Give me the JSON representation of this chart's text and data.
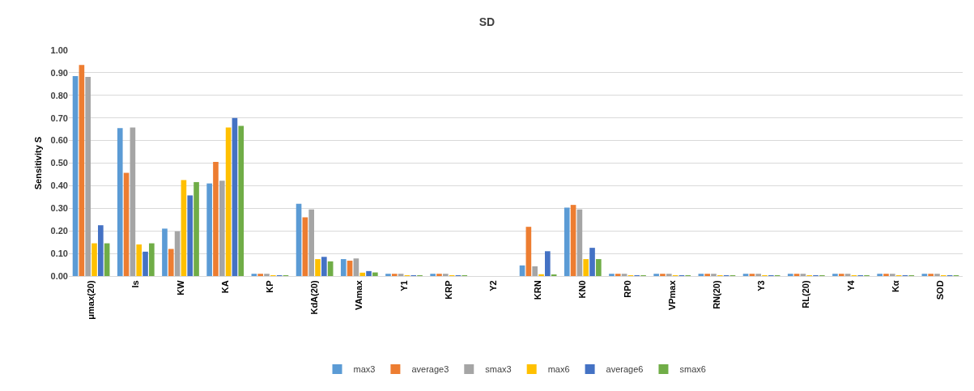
{
  "chart_data": {
    "type": "bar",
    "title": "SD",
    "ylabel": "Sensitivity S",
    "categories": [
      "μmax(20)",
      "Is",
      "KW",
      "KA",
      "KP",
      "KdA(20)",
      "VAmax",
      "Y1",
      "KRP",
      "Y2",
      "KRN",
      "KN0",
      "RP0",
      "VPmax",
      "RN(20)",
      "Y3",
      "RL(20)",
      "Y4",
      "Kα",
      "SOD"
    ],
    "series": [
      {
        "name": "max3",
        "color": "#5b9bd5",
        "values": [
          0.885,
          0.655,
          0.21,
          0.41,
          0.01,
          0.32,
          0.075,
          0.01,
          0.01,
          0,
          0.047,
          0.303,
          0.01,
          0.01,
          0.01,
          0.01,
          0.01,
          0.01,
          0.01,
          0.01
        ]
      },
      {
        "name": "average3",
        "color": "#ed7d31",
        "values": [
          0.935,
          0.457,
          0.12,
          0.505,
          0.01,
          0.26,
          0.068,
          0.01,
          0.01,
          0,
          0.218,
          0.315,
          0.01,
          0.01,
          0.01,
          0.01,
          0.01,
          0.01,
          0.01,
          0.01
        ]
      },
      {
        "name": "smax3",
        "color": "#a5a5a5",
        "values": [
          0.882,
          0.658,
          0.198,
          0.422,
          0.01,
          0.295,
          0.078,
          0.01,
          0.01,
          0,
          0.043,
          0.295,
          0.01,
          0.01,
          0.01,
          0.01,
          0.01,
          0.01,
          0.01,
          0.01
        ]
      },
      {
        "name": "max6",
        "color": "#ffc000",
        "values": [
          0.145,
          0.14,
          0.425,
          0.658,
          0.003,
          0.075,
          0.015,
          0.003,
          0.003,
          0,
          0.008,
          0.075,
          0.003,
          0.003,
          0.003,
          0.003,
          0.003,
          0.003,
          0.003,
          0.003
        ]
      },
      {
        "name": "average6",
        "color": "#4472c4",
        "values": [
          0.225,
          0.108,
          0.357,
          0.7,
          0.003,
          0.085,
          0.022,
          0.003,
          0.003,
          0,
          0.11,
          0.125,
          0.003,
          0.003,
          0.003,
          0.003,
          0.003,
          0.003,
          0.003,
          0.003
        ]
      },
      {
        "name": "smax6",
        "color": "#70ad47",
        "values": [
          0.145,
          0.145,
          0.416,
          0.665,
          0.003,
          0.065,
          0.016,
          0.003,
          0.003,
          0,
          0.005,
          0.075,
          0.003,
          0.003,
          0.003,
          0.003,
          0.003,
          0.003,
          0.003,
          0.003
        ]
      }
    ],
    "ylim": [
      0,
      1
    ],
    "yticks": [
      {
        "value": 0,
        "label": "0.00"
      },
      {
        "value": 0.1,
        "label": "0.10"
      },
      {
        "value": 0.2,
        "label": "0.20"
      },
      {
        "value": 0.3,
        "label": "0.30"
      },
      {
        "value": 0.4,
        "label": "0.40"
      },
      {
        "value": 0.5,
        "label": "0.50"
      },
      {
        "value": 0.6,
        "label": "0.60"
      },
      {
        "value": 0.7,
        "label": "0.70"
      },
      {
        "value": 0.8,
        "label": "0.80"
      },
      {
        "value": 0.9,
        "label": "0.90"
      },
      {
        "value": 1,
        "label": "1.00"
      }
    ],
    "grid": "y",
    "legend": "bottom"
  }
}
